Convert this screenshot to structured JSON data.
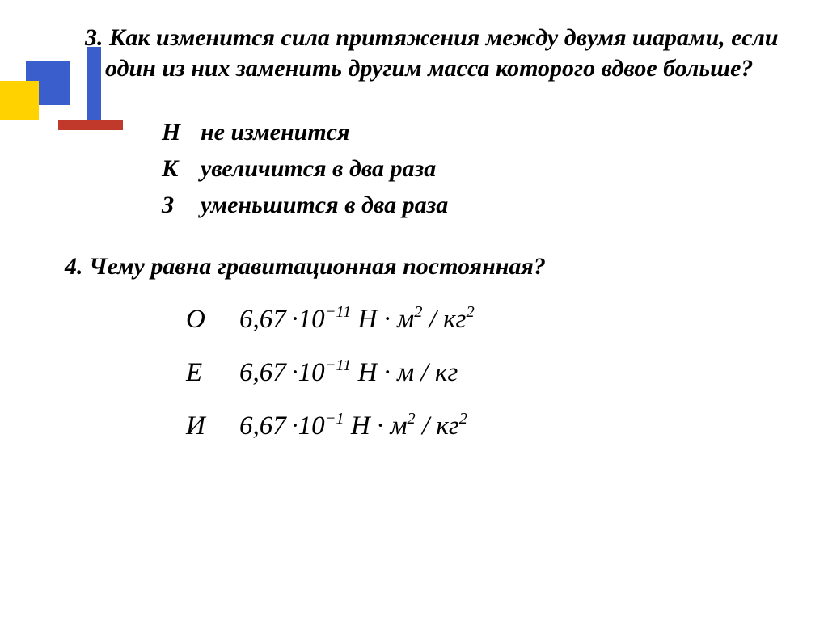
{
  "decor": {
    "blue_box_color": "#3a5fcd",
    "yellow_box_color": "#ffd200",
    "red_line_color": "#c0392b"
  },
  "q3": {
    "number": "3.",
    "text": "Как изменится сила притяжения между двумя шарами, если один из них заменить другим масса которого вдвое больше?",
    "options": [
      {
        "letter": "Н",
        "text": "не изменится"
      },
      {
        "letter": "К",
        "text": "увеличится в два раза"
      },
      {
        "letter": "З",
        "text": "уменьшится в два раза"
      }
    ]
  },
  "q4": {
    "number": "4.",
    "text": "Чему равна гравитационная постоянная?",
    "options": [
      {
        "letter": "О",
        "coeff": "6,67",
        "exp": "−11",
        "unit_m_exp": "2",
        "unit_kg_exp": "2"
      },
      {
        "letter": "Е",
        "coeff": "6,67",
        "exp": "−11",
        "unit_m_exp": "",
        "unit_kg_exp": ""
      },
      {
        "letter": "И",
        "coeff": "6,67",
        "exp": "−1",
        "unit_m_exp": "2",
        "unit_kg_exp": "2"
      }
    ],
    "base": "10",
    "unit_N": "Н",
    "unit_m": "м",
    "unit_kg": "кг",
    "dot": "·",
    "slash": "/"
  },
  "style": {
    "question_fontsize": 30,
    "formula_fontsize": 33,
    "text_color": "#000000",
    "background_color": "#ffffff"
  }
}
